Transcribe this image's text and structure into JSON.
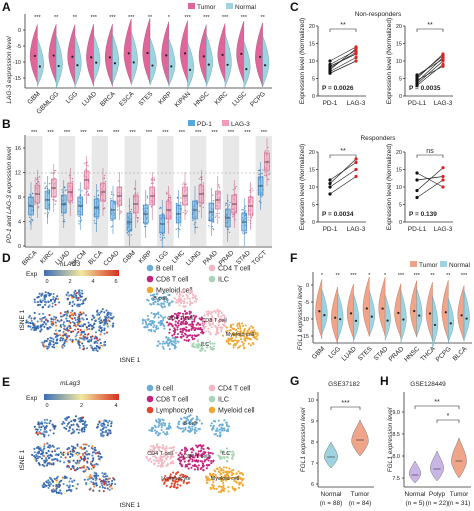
{
  "panels": {
    "A": {
      "letter": "A",
      "legend": [
        "Tumor",
        "Normal"
      ],
      "ylabel": "LAG-3 expression level",
      "yticks": [
        "0",
        "-5",
        "-10",
        "-15"
      ],
      "categories": [
        "GBM",
        "GBMLGG",
        "LGG",
        "LUAD",
        "BRCA",
        "ESCA",
        "STES",
        "KIRP",
        "KIPAN",
        "HNSC",
        "KIRC",
        "LUSC",
        "PCPG"
      ],
      "sig": [
        "***",
        "**",
        "**",
        "***",
        "***",
        "***",
        "**",
        "*",
        "***",
        "***",
        "***",
        "***",
        "**"
      ],
      "colors": {
        "tumor": "#e0669a",
        "normal": "#9fd3df"
      }
    },
    "B": {
      "letter": "B",
      "legend": [
        "PD-1",
        "LAG-3"
      ],
      "ylabel": "PD-1 and LAG-3 expression level",
      "yticks": [
        "16",
        "12",
        "8",
        "4",
        "0"
      ],
      "categories": [
        "BRCA",
        "KIRC",
        "LUAD",
        "SKCM",
        "BLCA",
        "COAD",
        "GBM",
        "KIRP",
        "LGG",
        "LIHC",
        "LUNG",
        "PAAD",
        "PRAD",
        "STAD",
        "TGCT"
      ],
      "sig": [
        "***",
        "***",
        "***",
        "***",
        "***",
        "***",
        "***",
        "***",
        "***",
        "***",
        "***",
        "***",
        "***",
        "***",
        "***"
      ],
      "colors": {
        "pd1": "#5aa8e0",
        "lag3": "#f29ab8"
      }
    },
    "C": {
      "letter": "C",
      "ylabel": "Expression level (Normalized)",
      "groups": [
        {
          "title": "Non-responders",
          "plots": [
            {
              "xlabels": [
                "PD-1",
                "LAG-3"
              ],
              "p": "P = 0.0026",
              "sig": "**",
              "yticks": [
                "20",
                "15",
                "10",
                "5",
                "0"
              ],
              "pairs": [
                [
                  8,
                  12.5
                ],
                [
                  7,
                  11
                ],
                [
                  9,
                  13
                ],
                [
                  10,
                  14
                ],
                [
                  6.5,
                  10
                ],
                [
                  8.5,
                  12
                ],
                [
                  7.5,
                  13.5
                ]
              ]
            },
            {
              "xlabels": [
                "PD-L1",
                "LAG-3"
              ],
              "p": "P = 0.0035",
              "sig": "**",
              "yticks": [
                "20",
                "15",
                "10",
                "5",
                "0"
              ],
              "pairs": [
                [
                  4,
                  11
                ],
                [
                  6,
                  10.5
                ],
                [
                  3,
                  9
                ],
                [
                  5,
                  12
                ],
                [
                  4.5,
                  8.5
                ],
                [
                  3.5,
                  10
                ],
                [
                  5.5,
                  11.5
                ]
              ]
            }
          ]
        },
        {
          "title": "Responders",
          "plots": [
            {
              "xlabels": [
                "PD-1",
                "LAG-3"
              ],
              "p": "P = 0.0034",
              "sig": "**",
              "yticks": [
                "20",
                "15",
                "10",
                "5",
                "0"
              ],
              "pairs": [
                [
                  12,
                  17
                ],
                [
                  10,
                  15
                ],
                [
                  8,
                  13
                ],
                [
                  11,
                  18
                ]
              ]
            },
            {
              "xlabels": [
                "PD-L1",
                "LAG-3"
              ],
              "p": "P = 0.139",
              "sig": "ns",
              "yticks": [
                "20",
                "15",
                "10",
                "5",
                "0"
              ],
              "pairs": [
                [
                  12,
                  13
                ],
                [
                  9,
                  15.5
                ],
                [
                  14,
                  10
                ],
                [
                  7,
                  12
                ]
              ]
            }
          ]
        }
      ]
    },
    "D": {
      "letter": "D",
      "gene": "hLAG3",
      "exp_label": "Exp",
      "exp_ticks": [
        "0",
        "2",
        "4",
        "6"
      ],
      "legend": [
        "B cell",
        "CD4 T cell",
        "CD8 T cell",
        "ILC",
        "Myeloid cell"
      ],
      "legend_colors": [
        "#6aaed6",
        "#f4b6c2",
        "#c4247c",
        "#a8d5b5",
        "#f0a830"
      ],
      "xlabel": "tSNE 1",
      "ylabel": "tSNE 1",
      "cluster_labels": [
        "B cell",
        "CD4 T cell",
        "CD8 T cell",
        "ILC",
        "Myeloid cell"
      ]
    },
    "E": {
      "letter": "E",
      "gene": "mLag3",
      "exp_label": "Exp",
      "exp_ticks": [
        "0",
        "2",
        "4"
      ],
      "legend": [
        "B cell",
        "CD4 T cell",
        "CD8 T cell",
        "ILC",
        "Lymphocyte",
        "Myeloid cell"
      ],
      "legend_colors": [
        "#6aaed6",
        "#f4b6c2",
        "#c4247c",
        "#a8d5b5",
        "#e4452b",
        "#f0a830"
      ],
      "xlabel": "tSNE 1",
      "ylabel": "tSNE 1",
      "cluster_labels": [
        "B cell",
        "CD4 T cell",
        "CD8 T cell",
        "ILC",
        "Lymphocyte",
        "Myeloid cell"
      ]
    },
    "F": {
      "letter": "F",
      "legend": [
        "Tumor",
        "Normal"
      ],
      "ylabel": "FGL1 expression level",
      "yticks": [
        "0",
        "-5",
        "-10",
        "-15"
      ],
      "categories": [
        "GBM",
        "LGG",
        "LUAD",
        "STES",
        "STAD",
        "PRAD",
        "HNSC",
        "THCA",
        "PCPG",
        "BLCA"
      ],
      "sig": [
        "*",
        "**",
        "***",
        "*",
        "*",
        "***",
        "***",
        "**",
        "**",
        "***"
      ],
      "colors": {
        "tumor": "#f0a48a",
        "normal": "#9fd3df"
      }
    },
    "G": {
      "letter": "G",
      "title": "GSE37182",
      "ylabel": "FGL1 expression level",
      "yticks": [
        "10",
        "9",
        "8",
        "7",
        "6"
      ],
      "categories": [
        "Normal",
        "Tumor"
      ],
      "ns": [
        "(n = 88)",
        "(n = 84)"
      ],
      "sig": "***",
      "colors": [
        "#9fd3df",
        "#f0a48a"
      ]
    },
    "H": {
      "letter": "H",
      "title": "GSE128449",
      "ylabel": "FGL1 expression level",
      "yticks": [
        "9.0",
        "8.5",
        "8.0",
        "7.5"
      ],
      "categories": [
        "Normal",
        "Polyp",
        "Tumor"
      ],
      "ns": [
        "(n = 5)",
        "(n = 22)",
        "(n = 31)"
      ],
      "sig": [
        "**",
        "*"
      ],
      "colors": [
        "#c9b6e6",
        "#c9b6e6",
        "#f0a48a"
      ]
    }
  }
}
